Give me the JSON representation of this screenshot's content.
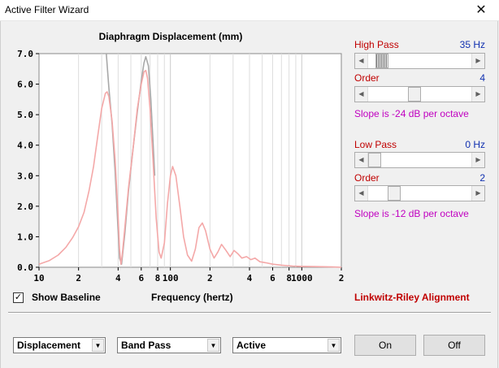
{
  "window": {
    "title": "Active Filter Wizard",
    "close_glyph": "✕"
  },
  "chart_data": {
    "type": "line",
    "title": "Diaphragm Displacement (mm)",
    "xlabel": "Frequency (hertz)",
    "ylabel": "",
    "x_scale": "log",
    "xlim": [
      10,
      2000
    ],
    "ylim": [
      0,
      7
    ],
    "y_ticks": [
      "0.0",
      "1.0",
      "2.0",
      "3.0",
      "4.0",
      "5.0",
      "6.0",
      "7.0"
    ],
    "x_ticks": [
      {
        "value": 10,
        "label": "10"
      },
      {
        "value": 20,
        "label": "2"
      },
      {
        "value": 40,
        "label": "4"
      },
      {
        "value": 60,
        "label": "6"
      },
      {
        "value": 80,
        "label": "8"
      },
      {
        "value": 100,
        "label": "100"
      },
      {
        "value": 200,
        "label": "2"
      },
      {
        "value": 400,
        "label": "4"
      },
      {
        "value": 600,
        "label": "6"
      },
      {
        "value": 800,
        "label": "8"
      },
      {
        "value": 1000,
        "label": "1000"
      },
      {
        "value": 2000,
        "label": "2"
      }
    ],
    "grid": true,
    "series": [
      {
        "color": "#a8a8a8",
        "points": [
          [
            32.5,
            7.0
          ],
          [
            34,
            5.9
          ],
          [
            36,
            4.7
          ],
          [
            38,
            3.1
          ],
          [
            40,
            1.2
          ],
          [
            41,
            0.3
          ],
          [
            42.5,
            0.1
          ],
          [
            45,
            1.1
          ],
          [
            48,
            2.5
          ],
          [
            52,
            3.9
          ],
          [
            56,
            5.1
          ],
          [
            60,
            6.1
          ],
          [
            63,
            6.7
          ],
          [
            65,
            6.9
          ],
          [
            68,
            6.6
          ],
          [
            71,
            5.5
          ],
          [
            74,
            4.0
          ],
          [
            76,
            3.0
          ]
        ]
      },
      {
        "color": "#f4a8a8",
        "points": [
          [
            10,
            0.1
          ],
          [
            12,
            0.22
          ],
          [
            14,
            0.4
          ],
          [
            16,
            0.65
          ],
          [
            18,
            0.97
          ],
          [
            20,
            1.33
          ],
          [
            22,
            1.8
          ],
          [
            24,
            2.5
          ],
          [
            26,
            3.3
          ],
          [
            28,
            4.3
          ],
          [
            30,
            5.2
          ],
          [
            32,
            5.7
          ],
          [
            33,
            5.75
          ],
          [
            34,
            5.6
          ],
          [
            36,
            4.8
          ],
          [
            38,
            3.5
          ],
          [
            40,
            1.7
          ],
          [
            41,
            0.6
          ],
          [
            42,
            0.1
          ],
          [
            43,
            0.4
          ],
          [
            45,
            1.3
          ],
          [
            48,
            2.6
          ],
          [
            52,
            3.9
          ],
          [
            56,
            5.2
          ],
          [
            60,
            6.0
          ],
          [
            63,
            6.4
          ],
          [
            65,
            6.45
          ],
          [
            67,
            6.2
          ],
          [
            70,
            5.2
          ],
          [
            74,
            3.4
          ],
          [
            78,
            1.6
          ],
          [
            82,
            0.5
          ],
          [
            85,
            0.3
          ],
          [
            90,
            0.8
          ],
          [
            95,
            2.1
          ],
          [
            100,
            3.0
          ],
          [
            104,
            3.3
          ],
          [
            110,
            3.0
          ],
          [
            118,
            2.0
          ],
          [
            126,
            1.0
          ],
          [
            135,
            0.4
          ],
          [
            145,
            0.2
          ],
          [
            155,
            0.6
          ],
          [
            165,
            1.3
          ],
          [
            175,
            1.45
          ],
          [
            185,
            1.2
          ],
          [
            200,
            0.6
          ],
          [
            215,
            0.3
          ],
          [
            230,
            0.5
          ],
          [
            245,
            0.75
          ],
          [
            265,
            0.55
          ],
          [
            285,
            0.35
          ],
          [
            305,
            0.55
          ],
          [
            325,
            0.45
          ],
          [
            350,
            0.3
          ],
          [
            380,
            0.35
          ],
          [
            410,
            0.25
          ],
          [
            440,
            0.3
          ],
          [
            480,
            0.18
          ],
          [
            530,
            0.15
          ],
          [
            600,
            0.1
          ],
          [
            700,
            0.07
          ],
          [
            850,
            0.04
          ],
          [
            1000,
            0.03
          ],
          [
            1300,
            0.02
          ],
          [
            1700,
            0.01
          ],
          [
            2000,
            0.0
          ]
        ]
      }
    ]
  },
  "controls": {
    "high_pass": {
      "label": "High Pass",
      "value": "35 Hz",
      "position": 0.08
    },
    "hp_order": {
      "label": "Order",
      "value": "4",
      "position": 0.44
    },
    "hp_slope": "Slope is -24 dB per octave",
    "low_pass": {
      "label": "Low Pass",
      "value": "0 Hz",
      "position": 0.0
    },
    "lp_order": {
      "label": "Order",
      "value": "2",
      "position": 0.22
    },
    "lp_slope": "Slope is -12 dB per octave"
  },
  "show_baseline": {
    "label": "Show Baseline",
    "checked": true,
    "mark": "✓"
  },
  "alignment_text": "Linkwitz-Riley Alignment",
  "combos": {
    "view": "Displacement",
    "filter_type": "Band Pass",
    "mode": "Active"
  },
  "buttons": {
    "on": "On",
    "off": "Off"
  },
  "colors": {
    "label_red": "#c00000",
    "value_blue": "#1030b0",
    "slope_magenta": "#c000c0",
    "baseline_curve": "#a8a8a8",
    "response_curve": "#f4a8a8"
  }
}
